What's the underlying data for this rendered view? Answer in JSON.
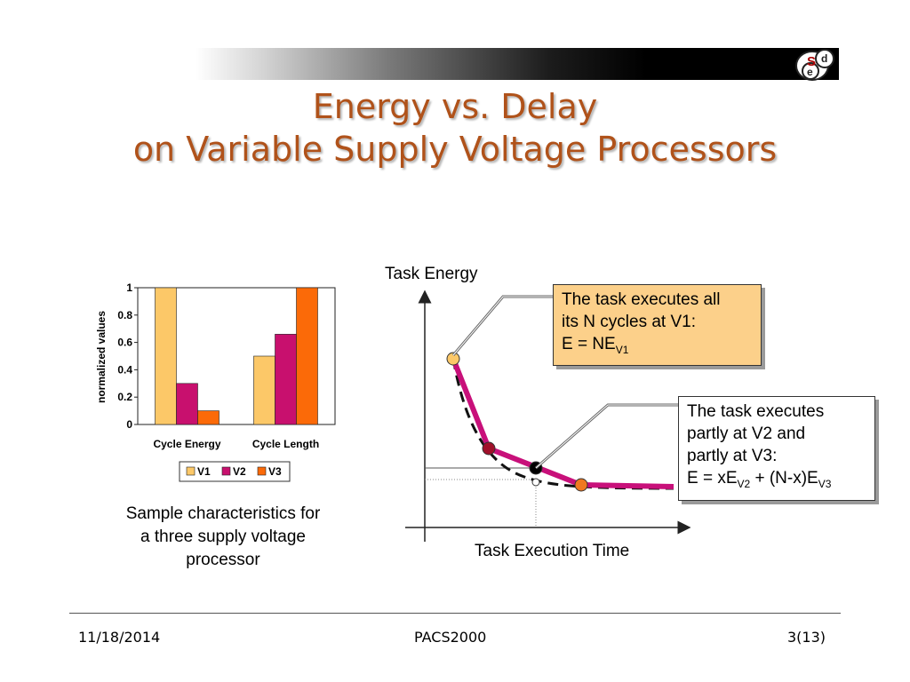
{
  "slide": {
    "title_line1": "Energy vs. Delay",
    "title_line2": "on Variable Supply Voltage Processors",
    "logo_letters": {
      "s": "S",
      "d": "d",
      "e": "e"
    },
    "caption_lines": [
      "Sample characteristics for",
      "a three supply voltage",
      "processor"
    ]
  },
  "diagram": {
    "y_axis_label": "Task Energy",
    "x_axis_label": "Task Execution Time",
    "callout1": {
      "line1": "The task executes all",
      "line2": "its N cycles at V1:",
      "formula_prefix": "E = NE",
      "formula_sub": "V1"
    },
    "callout2": {
      "line1": "The task executes",
      "line2": "partly at V2 and",
      "line3": "partly at V3:",
      "f_a": "E = xE",
      "f_sub1": "V2",
      "f_b": " + (N-x)E",
      "f_sub2": "V3"
    },
    "colors": {
      "curve": "#c8107a",
      "v1_point": "#fcc868",
      "v2_point": "#a0102a",
      "v3_point": "#f07820"
    }
  },
  "chart_data": {
    "type": "bar",
    "categories": [
      "Cycle Energy",
      "Cycle Length"
    ],
    "series": [
      {
        "name": "V1",
        "values": [
          1.0,
          0.5
        ],
        "color": "#fcc868"
      },
      {
        "name": "V2",
        "values": [
          0.3,
          0.66
        ],
        "color": "#c8106e"
      },
      {
        "name": "V3",
        "values": [
          0.1,
          1.0
        ],
        "color": "#fb6a08"
      }
    ],
    "ylabel": "normalized values",
    "ylim": [
      0,
      1
    ],
    "yticks": [
      "0",
      "0.2",
      "0.4",
      "0.6",
      "0.8",
      "1"
    ],
    "grid": false,
    "legend": "bottom"
  },
  "footer": {
    "date": "11/18/2014",
    "center": "PACS2000",
    "page": "3(13)"
  }
}
